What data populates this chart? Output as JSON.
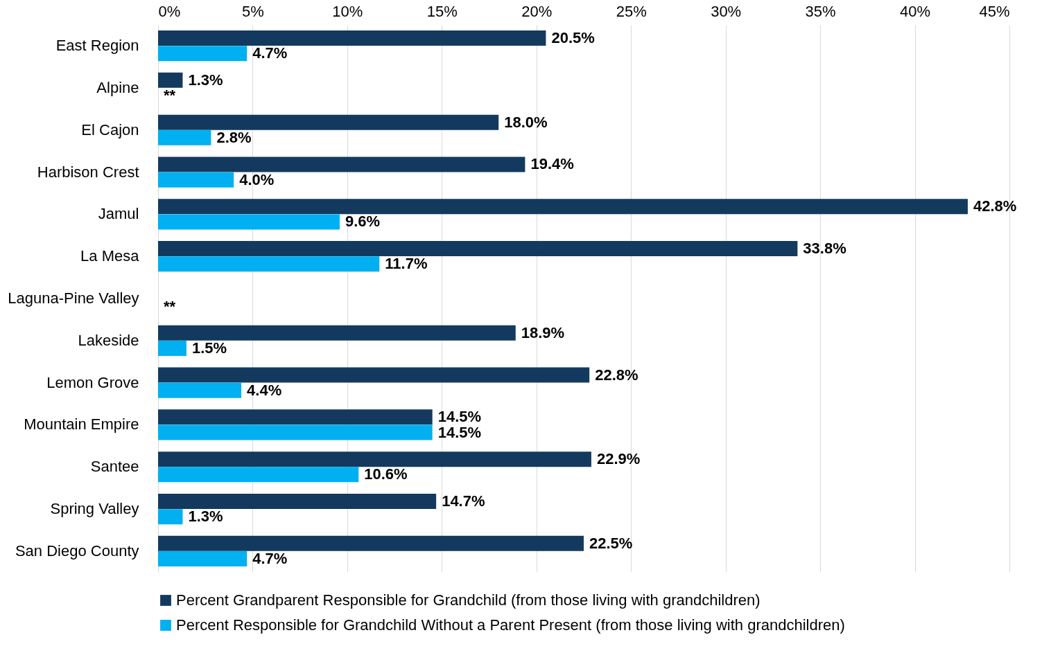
{
  "chart_data": {
    "type": "bar",
    "orientation": "horizontal",
    "categories": [
      "East Region",
      "Alpine",
      "El Cajon",
      "Harbison Crest",
      "Jamul",
      "La Mesa",
      "Laguna-Pine Valley",
      "Lakeside",
      "Lemon Grove",
      "Mountain Empire",
      "Santee",
      "Spring Valley",
      "San Diego County"
    ],
    "series": [
      {
        "name": "Percent Grandparent Responsible for Grandchild (from those living with grandchildren)",
        "color": "#133a5e",
        "values": [
          20.5,
          1.3,
          18.0,
          19.4,
          42.8,
          33.8,
          null,
          18.9,
          22.8,
          14.5,
          22.9,
          14.7,
          22.5
        ],
        "value_labels": [
          "20.5%",
          "1.3%",
          "18.0%",
          "19.4%",
          "42.8%",
          "33.8%",
          null,
          "18.9%",
          "22.8%",
          "14.5%",
          "22.9%",
          "14.7%",
          "22.5%"
        ]
      },
      {
        "name": "Percent Responsible for Grandchild Without a Parent Present (from those living with grandchildren)",
        "color": "#00b0f0",
        "values": [
          4.7,
          null,
          2.8,
          4.0,
          9.6,
          11.7,
          null,
          1.5,
          4.4,
          14.5,
          10.6,
          1.3,
          4.7
        ],
        "value_labels": [
          "4.7%",
          null,
          "2.8%",
          "4.0%",
          "9.6%",
          "11.7%",
          null,
          "1.5%",
          "4.4%",
          "14.5%",
          "10.6%",
          "1.3%",
          "4.7%"
        ]
      }
    ],
    "annotations": [
      "**",
      "**"
    ],
    "xlim": [
      0,
      45
    ],
    "xticks": [
      {
        "value": 0,
        "label": "0%"
      },
      {
        "value": 5,
        "label": "5%"
      },
      {
        "value": 10,
        "label": "10%"
      },
      {
        "value": 15,
        "label": "15%"
      },
      {
        "value": 20,
        "label": "20%"
      },
      {
        "value": 25,
        "label": "25%"
      },
      {
        "value": 30,
        "label": "30%"
      },
      {
        "value": 35,
        "label": "35%"
      },
      {
        "value": 40,
        "label": "40%"
      },
      {
        "value": 45,
        "label": "45%"
      }
    ],
    "grid": "x",
    "legend": "bottom"
  }
}
